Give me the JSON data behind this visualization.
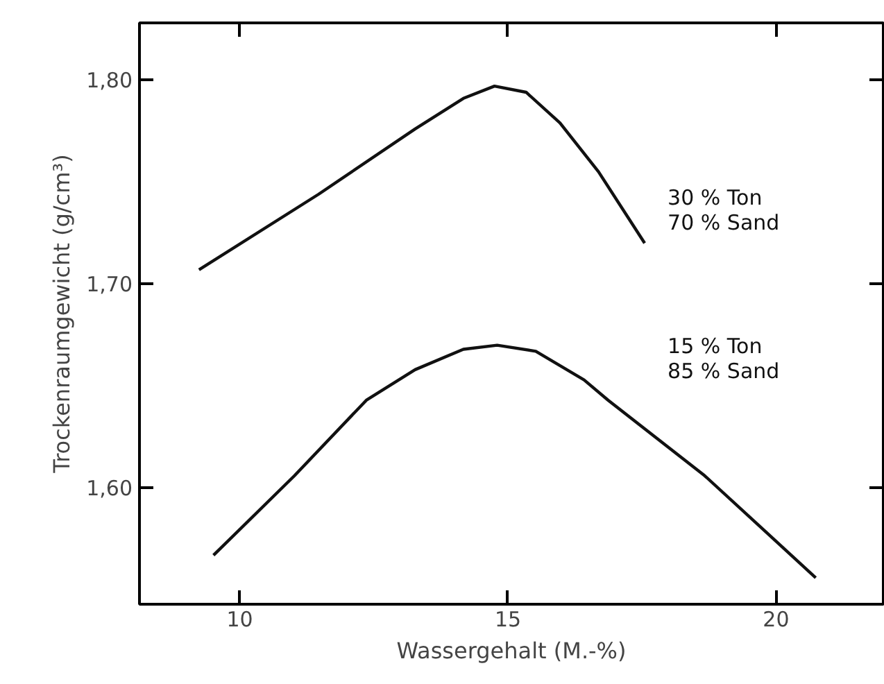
{
  "chart_data": {
    "type": "line",
    "xlabel": "Wassergehalt (M.-%)",
    "ylabel": "Trockenraumgewicht (g/cm³)",
    "xlim": [
      8.13,
      22
    ],
    "ylim": [
      1.543,
      1.828
    ],
    "xticks": [
      10,
      15,
      20
    ],
    "yticks": [
      {
        "value": 1.6,
        "label": "1,60"
      },
      {
        "value": 1.7,
        "label": "1,70"
      },
      {
        "value": 1.8,
        "label": "1,80"
      }
    ],
    "grid": false,
    "marker": "none",
    "line_style": "solid",
    "series": [
      {
        "name": "30 % Ton\n70 % Sand",
        "color": "#111111",
        "x": [
          9.24,
          11.47,
          13.27,
          14.17,
          14.75,
          15.34,
          15.97,
          16.69,
          17.55
        ],
        "values": [
          1.707,
          1.744,
          1.776,
          1.791,
          1.797,
          1.794,
          1.779,
          1.755,
          1.72
        ]
      },
      {
        "name": "15 % Ton\n85 % Sand",
        "color": "#111111",
        "x": [
          9.51,
          11.02,
          12.36,
          13.27,
          14.17,
          14.8,
          15.52,
          16.42,
          16.87,
          18.67,
          20.74
        ],
        "values": [
          1.567,
          1.606,
          1.643,
          1.658,
          1.668,
          1.67,
          1.667,
          1.653,
          1.643,
          1.606,
          1.556
        ]
      }
    ]
  }
}
